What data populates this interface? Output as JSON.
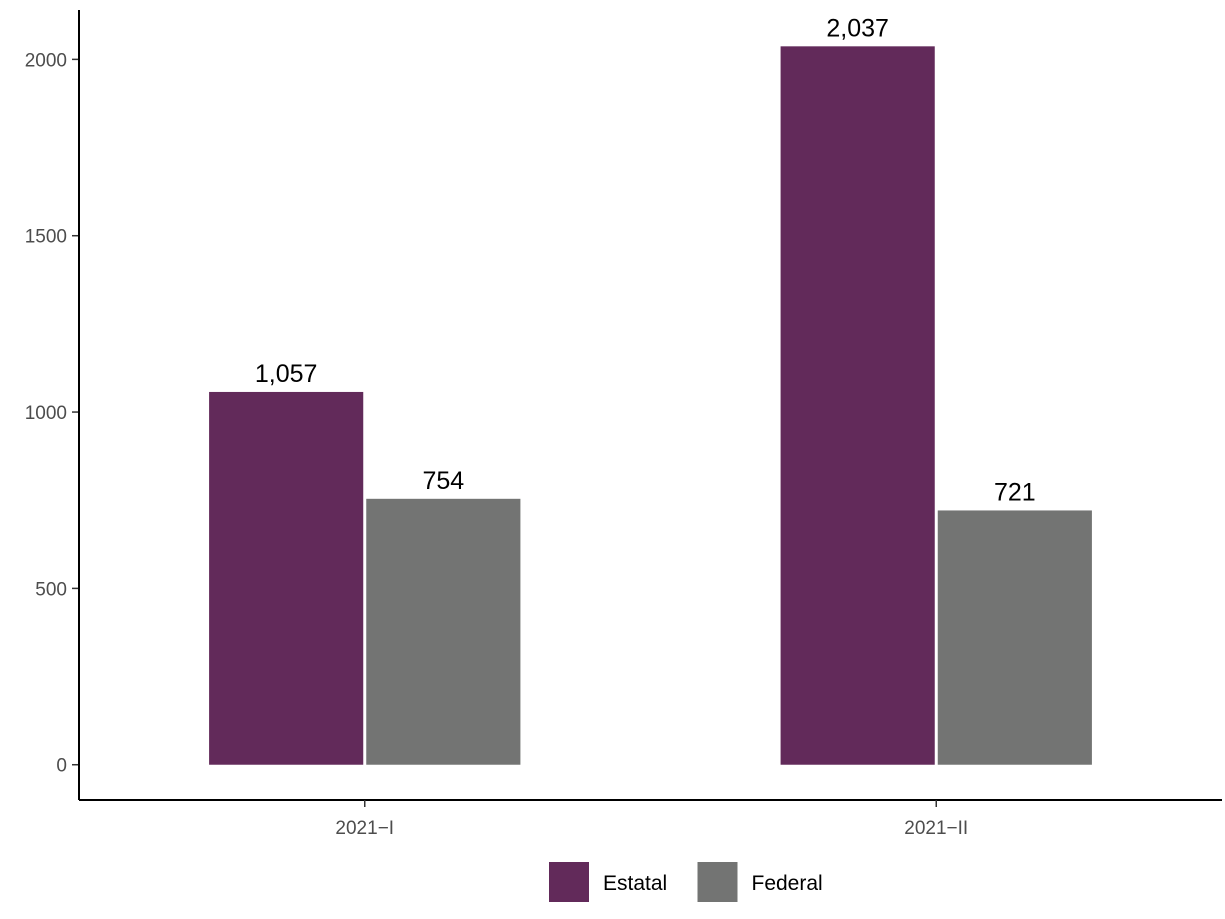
{
  "chart_data": {
    "type": "bar",
    "categories": [
      "2021−I",
      "2021−II"
    ],
    "series": [
      {
        "name": "Estatal",
        "values": [
          1057,
          2037
        ],
        "labels": [
          "1,057",
          "2,037"
        ],
        "color": "#622a5a"
      },
      {
        "name": "Federal",
        "values": [
          754,
          721
        ],
        "labels": [
          "754",
          "721"
        ],
        "color": "#737473"
      }
    ],
    "title": "",
    "xlabel": "",
    "ylabel": "",
    "ylim": [
      -100,
      2140
    ],
    "yticks": [
      0,
      500,
      1000,
      1500,
      2000
    ],
    "grid": false,
    "legend_position": "bottom"
  }
}
